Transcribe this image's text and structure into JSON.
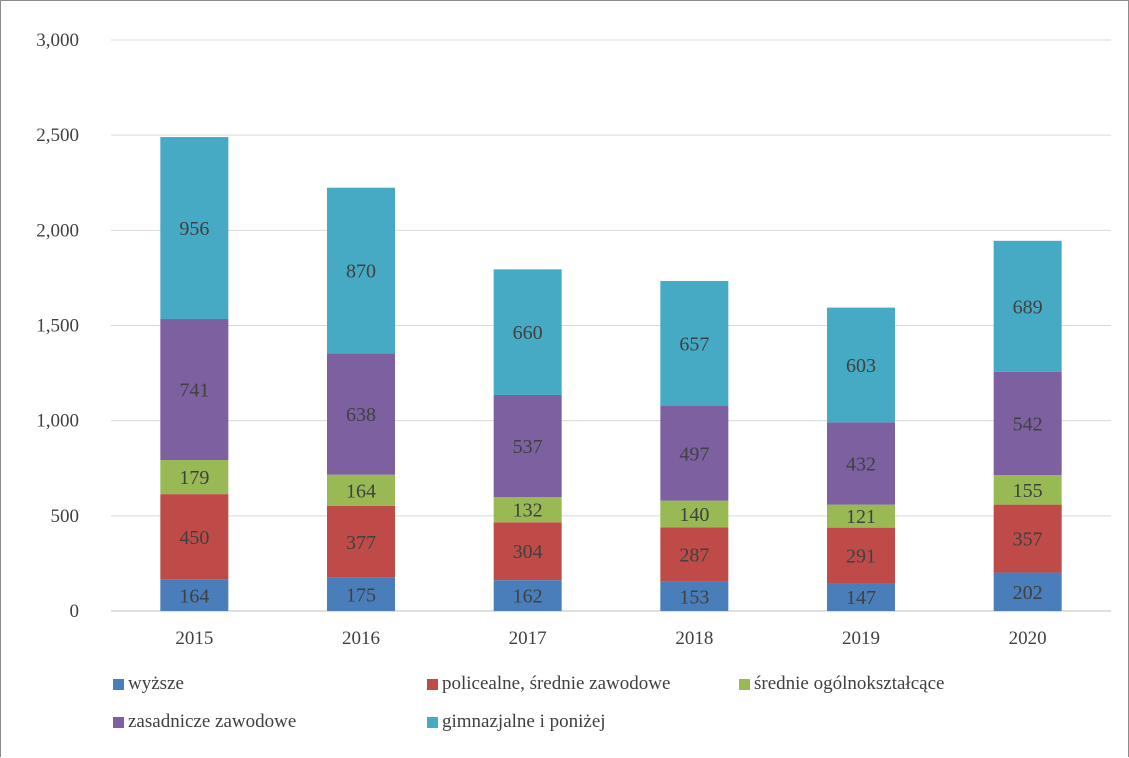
{
  "chart_data": {
    "type": "bar",
    "stacked": true,
    "categories": [
      "2015",
      "2016",
      "2017",
      "2018",
      "2019",
      "2020"
    ],
    "series": [
      {
        "name": "wyższe",
        "color": "#4a7ebb",
        "values": [
          164,
          175,
          162,
          153,
          147,
          202
        ]
      },
      {
        "name": "policealne, średnie zawodowe",
        "color": "#be4b48",
        "values": [
          450,
          377,
          304,
          287,
          291,
          357
        ]
      },
      {
        "name": "średnie ogólnokształcące",
        "color": "#98b954",
        "values": [
          179,
          164,
          132,
          140,
          121,
          155
        ]
      },
      {
        "name": "zasadnicze zawodowe",
        "color": "#7d60a0",
        "values": [
          741,
          638,
          537,
          497,
          432,
          542
        ]
      },
      {
        "name": "gimnazjalne i poniżej",
        "color": "#46aac5",
        "values": [
          956,
          870,
          660,
          657,
          603,
          689
        ]
      }
    ],
    "y_ticks": [
      "0",
      "500",
      "1,000",
      "1,500",
      "2,000",
      "2,500",
      "3,000"
    ],
    "ylim": [
      0,
      3000
    ],
    "grid": true,
    "legend_position": "bottom",
    "data_labels": true
  }
}
